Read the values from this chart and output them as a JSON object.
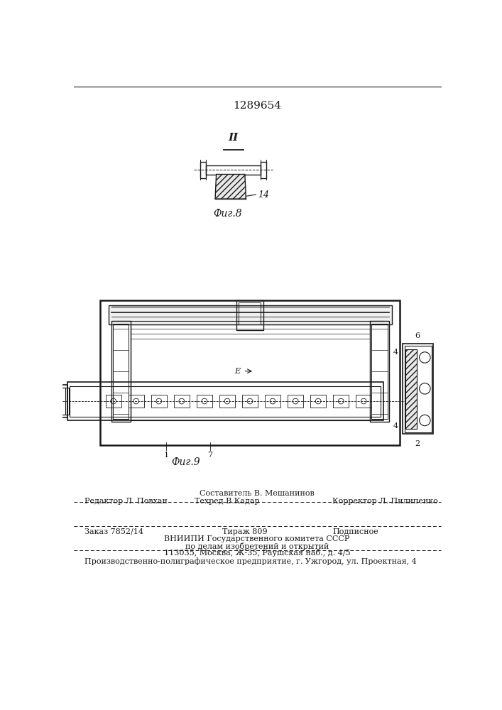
{
  "title": "1289654",
  "bg_color": "#ffffff",
  "line_color": "#1a1a1a",
  "fig8_label": "Фиг.8",
  "fig9_label": "Фиг.9",
  "arrow_label": "II",
  "label_14": "14",
  "label_e": "E",
  "label_4a": "4",
  "label_4b": "4",
  "label_6": "6",
  "label_1": "1",
  "label_7": "7",
  "label_2": "2",
  "footer_line1_col1": "Редактор Л. Повхан",
  "footer_line1_col2": "Составитель В. Мешанинов",
  "footer_line1_col3": "Корректор Л. Пилипенко",
  "footer_line2_col2": "Техред В.Кадар",
  "footer_line3_col1": "Заказ 7852/14",
  "footer_line3_col2": "Тираж 809",
  "footer_line3_col3": "Подписное",
  "footer_line4": "ВНИИПИ Государственного комитета СССР",
  "footer_line5": "по делам изобретений и открытий",
  "footer_line6": "113035, Москва, Ж-35, Раушская наб., д. 4/5",
  "footer_last": "Производственно-полиграфическое предприятие, г. Ужгород, ул. Проектная, 4"
}
